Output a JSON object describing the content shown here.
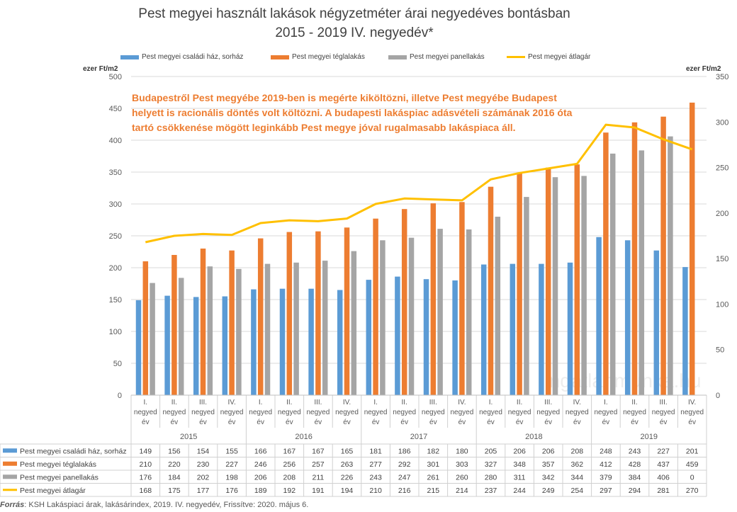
{
  "title_line1": "Pest megyei használt lakások négyzetméter árai negyedéves bontásban",
  "title_line2": "2015 - 2019 IV. negyedév*",
  "left_unit": "ezer Ft/m2",
  "right_unit": "ezer Ft/m2",
  "annotation": [
    "Budapestről Pest megyébe 2019-ben is megérte  kiköltözni, illetve  Pest  megyébe  Budapest",
    "helyett is racionális döntés volt költözni. A budapesti lakáspiac adásvételi számának 2016 óta",
    "tartó csökkenése mögött leginkább Pest megye jóval rugalmasabb lakáspiaca áll."
  ],
  "watermark": "ingatlanmunka.hu",
  "source_label": "Forrás",
  "source_text": ": KSH Lakáspiaci árak, lakásárindex, 2019. IV. negyedév, Frissítve: 2020. május 6.",
  "colors": {
    "csaladi": "#5b9bd5",
    "tegla": "#ed7d31",
    "panel": "#a5a5a5",
    "atlag": "#ffc000",
    "annotation": "#ed7d31"
  },
  "chart_data": {
    "type": "bar",
    "title": "Pest megyei használt lakások négyzetméter árai negyedéves bontásban 2015 - 2019 IV. negyedév*",
    "quarters": [
      "I. negyed év",
      "II. negyed év",
      "III. negyed év",
      "IV. negyed év"
    ],
    "years": [
      "2015",
      "2016",
      "2017",
      "2018",
      "2019"
    ],
    "categories": [
      "2015 I.",
      "2015 II.",
      "2015 III.",
      "2015 IV.",
      "2016 I.",
      "2016 II.",
      "2016 III.",
      "2016 IV.",
      "2017 I.",
      "2017 II.",
      "2017 III.",
      "2017 IV.",
      "2018 I.",
      "2018 II.",
      "2018 III.",
      "2018 IV.",
      "2019 I.",
      "2019 II.",
      "2019 III.",
      "2019 IV."
    ],
    "ylabel": "ezer Ft/m2",
    "ylim": [
      0,
      500
    ],
    "yticks": [
      0,
      50,
      100,
      150,
      200,
      250,
      300,
      350,
      400,
      450,
      500
    ],
    "y2label": "ezer Ft/m2",
    "y2lim": [
      0,
      350
    ],
    "y2ticks": [
      0,
      50,
      100,
      150,
      200,
      250,
      300,
      350
    ],
    "legend_position": "top",
    "grid": true,
    "series": [
      {
        "name": "Pest megyei családi ház, sorház",
        "kind": "bar",
        "axis": "left",
        "color": "#5b9bd5",
        "values": [
          149,
          156,
          154,
          155,
          166,
          167,
          167,
          165,
          181,
          186,
          182,
          180,
          205,
          206,
          206,
          208,
          248,
          243,
          227,
          201
        ]
      },
      {
        "name": "Pest megyei téglalakás",
        "kind": "bar",
        "axis": "left",
        "color": "#ed7d31",
        "values": [
          210,
          220,
          230,
          227,
          246,
          256,
          257,
          263,
          277,
          292,
          301,
          303,
          327,
          348,
          357,
          362,
          412,
          428,
          437,
          459
        ]
      },
      {
        "name": "Pest megyei panellakás",
        "kind": "bar",
        "axis": "left",
        "color": "#a5a5a5",
        "values": [
          176,
          184,
          202,
          198,
          206,
          208,
          211,
          226,
          243,
          247,
          261,
          260,
          280,
          311,
          342,
          344,
          379,
          384,
          406,
          0
        ]
      },
      {
        "name": "Pest megyei átlagár",
        "kind": "line",
        "axis": "right",
        "color": "#ffc000",
        "values": [
          168,
          175,
          177,
          176,
          189,
          192,
          191,
          194,
          210,
          216,
          215,
          214,
          237,
          244,
          249,
          254,
          297,
          294,
          281,
          270
        ]
      }
    ]
  }
}
